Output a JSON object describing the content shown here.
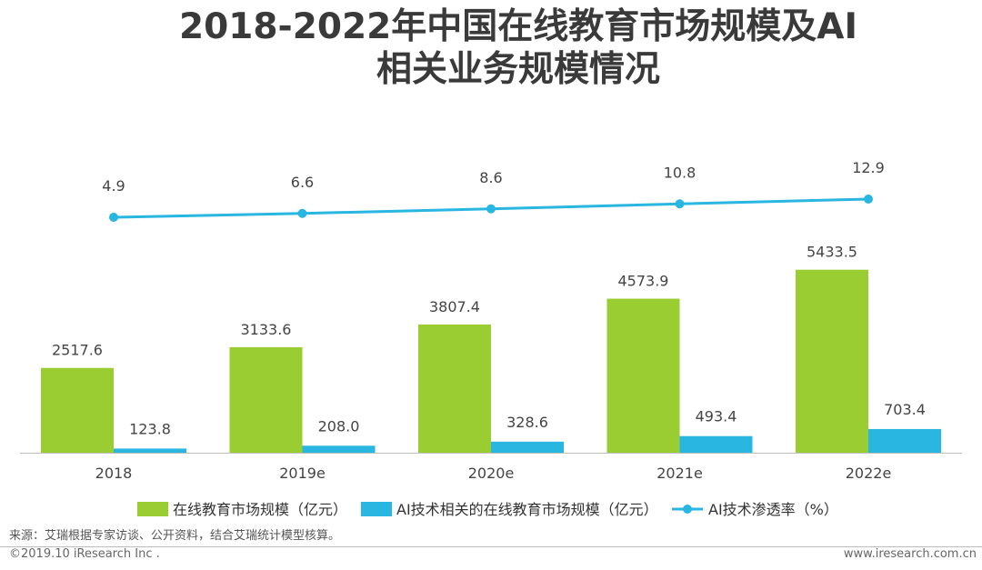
{
  "header": {
    "title_line1": "2018-2022年中国在线教育市场规模及AI",
    "title_line2": "相关业务规模情况"
  },
  "chart_data": {
    "type": "bar",
    "categories": [
      "2018",
      "2019e",
      "2020e",
      "2021e",
      "2022e"
    ],
    "series": [
      {
        "name": "在线教育市场规模（亿元）",
        "type": "bar",
        "color": "#9acd32",
        "values": [
          2517.6,
          3133.6,
          3807.4,
          4573.9,
          5433.5
        ],
        "labels": [
          "2517.6",
          "3133.6",
          "3807.4",
          "4573.9",
          "5433.5"
        ]
      },
      {
        "name": "AI技术相关的在线教育市场规模（亿元）",
        "type": "bar",
        "color": "#29b6e0",
        "values": [
          123.8,
          208.0,
          328.6,
          493.4,
          703.4
        ],
        "labels": [
          "123.8",
          "208.0",
          "328.6",
          "493.4",
          "703.4"
        ]
      },
      {
        "name": "AI技术渗透率（%）",
        "type": "line",
        "color": "#29b6e0",
        "values": [
          4.9,
          6.6,
          8.6,
          10.8,
          12.9
        ],
        "labels": [
          "4.9",
          "6.6",
          "8.6",
          "10.8",
          "12.9"
        ]
      }
    ],
    "legend_position": "bottom",
    "grid": false
  },
  "footer": {
    "source": "来源：艾瑞根据专家访谈、公开资料，结合艾瑞统计模型核算。",
    "copyright": "©2019.10 iResearch Inc .",
    "website": "www.iresearch.com.cn"
  }
}
